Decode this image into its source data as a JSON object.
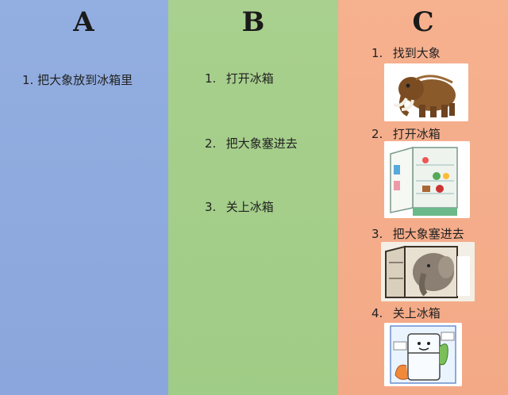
{
  "columns": {
    "a": {
      "header": "A",
      "steps": [
        {
          "num": "1.",
          "text": "把大象放到冰箱里"
        }
      ]
    },
    "b": {
      "header": "B",
      "steps": [
        {
          "num": "1.",
          "text": "打开冰箱"
        },
        {
          "num": "2.",
          "text": "把大象塞进去"
        },
        {
          "num": "3.",
          "text": "关上冰箱"
        }
      ]
    },
    "c": {
      "header": "C",
      "steps": [
        {
          "num": "1.",
          "text": "找到大象",
          "icon": "mammoth-illustration"
        },
        {
          "num": "2.",
          "text": "打开冰箱",
          "icon": "open-fridge-illustration"
        },
        {
          "num": "3.",
          "text": "把大象塞进去",
          "icon": "elephant-in-fridge-illustration"
        },
        {
          "num": "4.",
          "text": "关上冰箱",
          "icon": "cartoon-fridge-illustration"
        }
      ]
    }
  },
  "colors": {
    "a_bg": "#8fabe0",
    "b_bg": "#a6d08b",
    "c_bg": "#f5ae8c"
  }
}
